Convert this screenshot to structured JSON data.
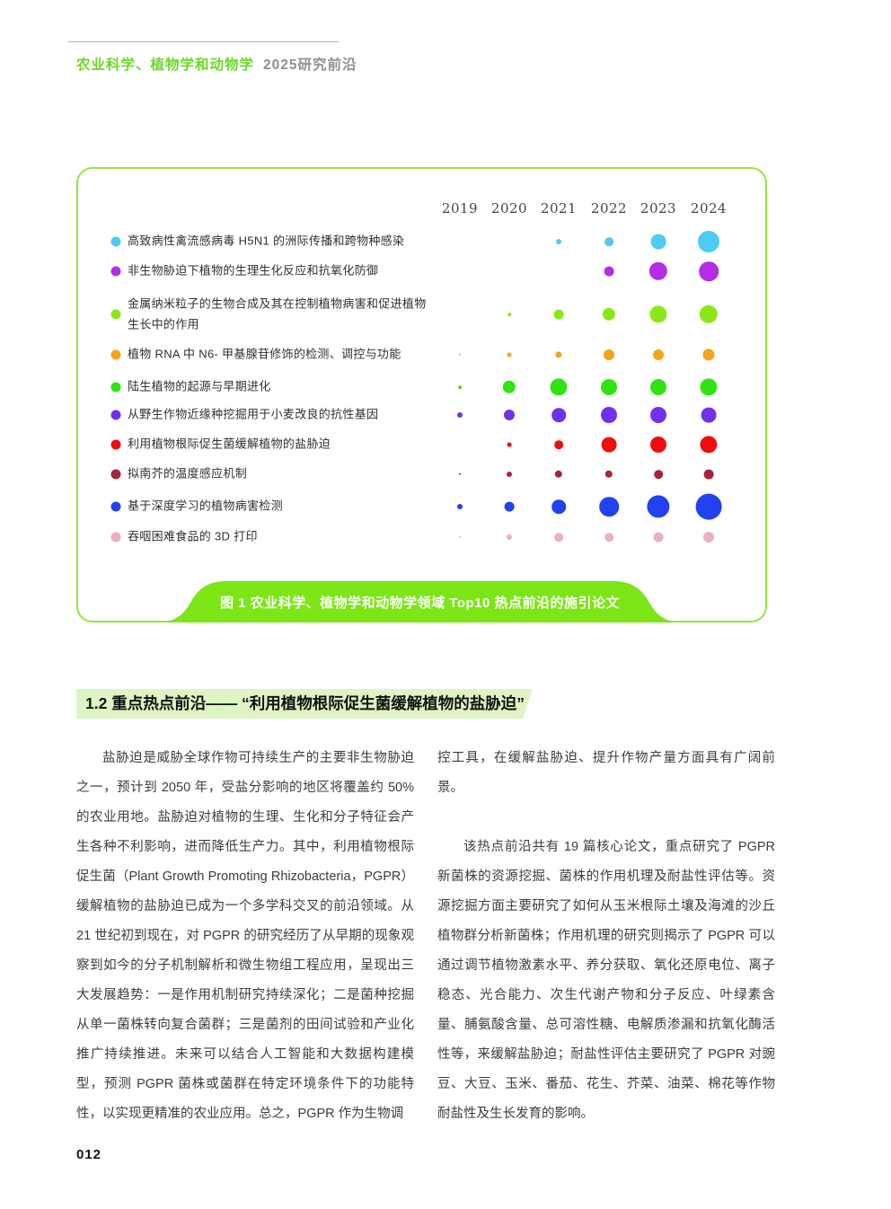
{
  "page": {
    "number": "012"
  },
  "header": {
    "title_green": "农业科学、植物学和动物学",
    "title_gray": "2025研究前沿"
  },
  "figure": {
    "caption": "图 1  农业科学、植物学和动物学领域 Top10 热点前沿的施引论文"
  },
  "section": {
    "heading": "1.2 重点热点前沿—— “利用植物根际促生菌缓解植物的盐胁迫”"
  },
  "colors": {
    "accent_green": "#7ce516",
    "box_border_green": "#94e83a",
    "heading_band_green": "#def4c3",
    "header_text_green": "#68da25",
    "header_text_gray": "#8f8f8f"
  },
  "chart_data": {
    "type": "bubble",
    "title": "图 1  农业科学、植物学和动物学领域 Top10 热点前沿的施引论文",
    "x": [
      "2019",
      "2020",
      "2021",
      "2022",
      "2023",
      "2024"
    ],
    "size_note": "bubble diameters approximate citing-paper volume per year, in px read from figure",
    "legend_position": "left",
    "series": [
      {
        "name": "高致病性禽流感病毒 H5N1 的洲际传播和跨物种感染",
        "color": "#4dcbf2",
        "sizes": [
          0,
          0,
          5,
          8,
          14,
          20
        ]
      },
      {
        "name": "非生物胁迫下植物的生理生化反应和抗氧化防御",
        "color": "#b42ce4",
        "sizes": [
          0,
          0,
          0,
          9,
          17,
          18
        ]
      },
      {
        "name": "金属纳米粒子的生物合成及其在控制植物病害和促进植物生长中的作用",
        "color": "#8be816",
        "sizes": [
          0,
          3,
          9,
          12,
          16,
          17
        ]
      },
      {
        "name": "植物 RNA 中 N6- 甲基腺苷修饰的检测、调控与功能",
        "color": "#f6a417",
        "sizes": [
          2,
          4,
          6,
          10,
          10,
          11
        ]
      },
      {
        "name": "陆生植物的起源与早期进化",
        "color": "#2fe411",
        "sizes": [
          3,
          12,
          16,
          15,
          15,
          16
        ]
      },
      {
        "name": "从野生作物近缘种挖掘用于小麦改良的抗性基因",
        "color": "#7230ee",
        "sizes": [
          5,
          10,
          13,
          15,
          15,
          14
        ]
      },
      {
        "name": "利用植物根际促生菌缓解植物的盐胁迫",
        "color": "#f20d0d",
        "sizes": [
          0,
          4,
          8,
          14,
          15,
          16
        ]
      },
      {
        "name": "拟南芥的温度感应机制",
        "color": "#a6253c",
        "sizes": [
          2,
          5,
          7,
          7,
          8,
          9
        ]
      },
      {
        "name": "基于深度学习的植物病害检测",
        "color": "#2142ee",
        "sizes": [
          5,
          9,
          13,
          18,
          21,
          24
        ]
      },
      {
        "name": "吞咽困难食品的 3D 打印",
        "color": "#e9afc7",
        "sizes": [
          2,
          5,
          8,
          8,
          9,
          10
        ]
      }
    ]
  },
  "body": {
    "left_column": [
      {
        "indent": true,
        "text": "盐胁迫是威胁全球作物可持续生产的主要非生物胁迫之一，预计到 2050 年，受盐分影响的地区将覆盖约 50% 的农业用地。盐胁迫对植物的生理、生化和分子特征会产生各种不利影响，进而降低生产力。其中，利用植物根际促生菌（Plant Growth Promoting Rhizobacteria，PGPR）缓解植物的盐胁迫已成为一个多学科交叉的前沿领域。从 21 世纪初到现在，对 PGPR 的研究经历了从早期的现象观察到如今的分子机制解析和微生物组工程应用，呈现出三大发展趋势：一是作用机制研究持续深化；二是菌种挖掘从单一菌株转向复合菌群；三是菌剂的田间试验和产业化推广持续推进。未来可以结合人工智能和大数据构建模型，预测 PGPR 菌株或菌群在特定环境条件下的功能特性，以实现更精准的农业应用。总之，PGPR 作为生物调"
      }
    ],
    "right_column": [
      {
        "indent": false,
        "text": "控工具，在缓解盐胁迫、提升作物产量方面具有广阔前景。"
      },
      {
        "indent": true,
        "text": "该热点前沿共有 19 篇核心论文，重点研究了 PGPR 新菌株的资源挖掘、菌株的作用机理及耐盐性评估等。资源挖掘方面主要研究了如何从玉米根际土壤及海滩的沙丘植物群分析新菌株；作用机理的研究则揭示了 PGPR 可以通过调节植物激素水平、养分获取、氧化还原电位、离子稳态、光合能力、次生代谢产物和分子反应、叶绿素含量、脯氨酸含量、总可溶性糖、电解质渗漏和抗氧化酶活性等，来缓解盐胁迫；耐盐性评估主要研究了 PGPR 对豌豆、大豆、玉米、番茄、花生、芥菜、油菜、棉花等作物耐盐性及生长发育的影响。"
      }
    ]
  }
}
